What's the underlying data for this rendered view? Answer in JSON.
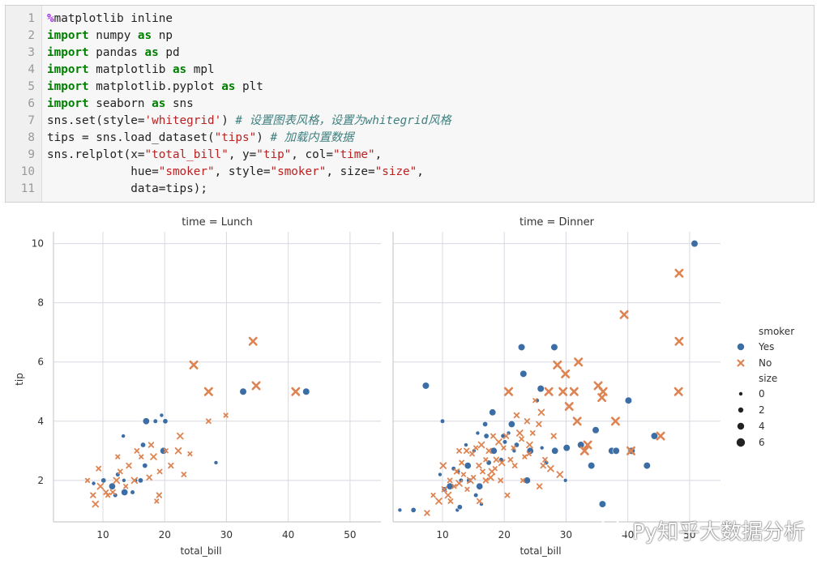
{
  "code_cell": {
    "lines": [
      {
        "n": "1",
        "parts": [
          {
            "t": "%",
            "c": "mg"
          },
          {
            "t": "matplotlib inline",
            "c": "txt"
          }
        ]
      },
      {
        "n": "2",
        "parts": [
          {
            "t": "import",
            "c": "kw"
          },
          {
            "t": " numpy ",
            "c": "txt"
          },
          {
            "t": "as",
            "c": "kw"
          },
          {
            "t": " np",
            "c": "txt"
          }
        ]
      },
      {
        "n": "3",
        "parts": [
          {
            "t": "import",
            "c": "kw"
          },
          {
            "t": " pandas ",
            "c": "txt"
          },
          {
            "t": "as",
            "c": "kw"
          },
          {
            "t": " pd",
            "c": "txt"
          }
        ]
      },
      {
        "n": "4",
        "parts": [
          {
            "t": "import",
            "c": "kw"
          },
          {
            "t": " matplotlib ",
            "c": "txt"
          },
          {
            "t": "as",
            "c": "kw"
          },
          {
            "t": " mpl",
            "c": "txt"
          }
        ]
      },
      {
        "n": "5",
        "parts": [
          {
            "t": "import",
            "c": "kw"
          },
          {
            "t": " matplotlib.pyplot ",
            "c": "txt"
          },
          {
            "t": "as",
            "c": "kw"
          },
          {
            "t": " plt",
            "c": "txt"
          }
        ]
      },
      {
        "n": "6",
        "parts": [
          {
            "t": "import",
            "c": "kw"
          },
          {
            "t": " seaborn ",
            "c": "txt"
          },
          {
            "t": "as",
            "c": "kw"
          },
          {
            "t": " sns",
            "c": "txt"
          }
        ]
      },
      {
        "n": "7",
        "parts": [
          {
            "t": "sns.set(style=",
            "c": "txt"
          },
          {
            "t": "'whitegrid'",
            "c": "str"
          },
          {
            "t": ") ",
            "c": "txt"
          },
          {
            "t": "# 设置图表风格，设置为whitegrid风格",
            "c": "com"
          }
        ]
      },
      {
        "n": "8",
        "parts": [
          {
            "t": "tips = sns.load_dataset(",
            "c": "txt"
          },
          {
            "t": "\"tips\"",
            "c": "str"
          },
          {
            "t": ") ",
            "c": "txt"
          },
          {
            "t": "# 加载内置数据",
            "c": "com"
          }
        ]
      },
      {
        "n": "9",
        "parts": [
          {
            "t": "sns.relplot(x=",
            "c": "txt"
          },
          {
            "t": "\"total_bill\"",
            "c": "str"
          },
          {
            "t": ", y=",
            "c": "txt"
          },
          {
            "t": "\"tip\"",
            "c": "str"
          },
          {
            "t": ", col=",
            "c": "txt"
          },
          {
            "t": "\"time\"",
            "c": "str"
          },
          {
            "t": ",",
            "c": "txt"
          }
        ]
      },
      {
        "n": "10",
        "parts": [
          {
            "t": "            hue=",
            "c": "txt"
          },
          {
            "t": "\"smoker\"",
            "c": "str"
          },
          {
            "t": ", style=",
            "c": "txt"
          },
          {
            "t": "\"smoker\"",
            "c": "str"
          },
          {
            "t": ", size=",
            "c": "txt"
          },
          {
            "t": "\"size\"",
            "c": "str"
          },
          {
            "t": ",",
            "c": "txt"
          }
        ]
      },
      {
        "n": "11",
        "parts": [
          {
            "t": "            data=tips);",
            "c": "txt"
          }
        ]
      }
    ]
  },
  "colors": {
    "yes": "#3c6ea5",
    "no": "#dd8452",
    "grid": "#d8d8e2",
    "axis": "#cccccc",
    "text": "#333333"
  },
  "chart_data": {
    "type": "scatter",
    "ylabel": "tip",
    "xticks": [
      10,
      20,
      30,
      40,
      50
    ],
    "yticks": [
      2,
      4,
      6,
      8,
      10
    ],
    "xlim": [
      2,
      55
    ],
    "ylim": [
      0.6,
      10.4
    ],
    "panels": [
      {
        "title": "time = Lunch",
        "xlabel": "total_bill",
        "yes": [
          [
            13.3,
            3.5
          ],
          [
            16.5,
            3.2
          ],
          [
            17,
            4.0
          ],
          [
            18.5,
            4.0
          ],
          [
            19.5,
            4.2
          ],
          [
            20.1,
            4.0
          ],
          [
            19.8,
            3.0
          ],
          [
            12.4,
            2.2
          ],
          [
            13.4,
            2.0
          ],
          [
            16.1,
            2.0
          ],
          [
            13.5,
            1.6
          ],
          [
            14.8,
            1.6
          ],
          [
            15.3,
            2.0
          ],
          [
            10.1,
            2.0
          ],
          [
            11.5,
            1.8
          ],
          [
            12,
            1.5
          ],
          [
            8.5,
            1.9
          ],
          [
            16.8,
            2.5
          ],
          [
            32.7,
            5.0
          ],
          [
            42.9,
            5.0
          ],
          [
            28.3,
            2.6
          ]
        ],
        "no": [
          [
            7.5,
            2.0
          ],
          [
            8.4,
            1.5
          ],
          [
            9.6,
            1.8
          ],
          [
            10.5,
            1.6
          ],
          [
            10.8,
            1.5
          ],
          [
            11.6,
            1.6
          ],
          [
            12.2,
            2.0
          ],
          [
            12.8,
            2.3
          ],
          [
            13.7,
            1.8
          ],
          [
            14.2,
            2.5
          ],
          [
            15.1,
            2.0
          ],
          [
            15.5,
            3.0
          ],
          [
            16.2,
            2.8
          ],
          [
            17.5,
            2.1
          ],
          [
            18.2,
            2.8
          ],
          [
            19.2,
            2.3
          ],
          [
            20.2,
            3.0
          ],
          [
            21,
            2.5
          ],
          [
            22.2,
            3.0
          ],
          [
            23.1,
            2.2
          ],
          [
            24.1,
            2.9
          ],
          [
            24.7,
            5.9
          ],
          [
            27.1,
            5.0
          ],
          [
            27.1,
            4.0
          ],
          [
            29.9,
            4.2
          ],
          [
            34.3,
            6.7
          ],
          [
            34.8,
            5.2
          ],
          [
            41.2,
            5.0
          ],
          [
            18.7,
            1.3
          ],
          [
            19.1,
            1.5
          ],
          [
            8.8,
            1.2
          ],
          [
            9.3,
            2.4
          ],
          [
            12.4,
            2.8
          ],
          [
            17.8,
            3.2
          ],
          [
            22.5,
            3.5
          ]
        ]
      },
      {
        "title": "time = Dinner",
        "xlabel": "total_bill",
        "yes": [
          [
            3.1,
            1.0
          ],
          [
            5.3,
            1.0
          ],
          [
            7.3,
            5.2
          ],
          [
            10.0,
            4.0
          ],
          [
            12.4,
            1.0
          ],
          [
            12.8,
            1.1
          ],
          [
            14.1,
            2.5
          ],
          [
            15.4,
            1.5
          ],
          [
            16.3,
            1.2
          ],
          [
            17.1,
            3.5
          ],
          [
            18.1,
            4.3
          ],
          [
            19.8,
            3.5
          ],
          [
            22.8,
            6.5
          ],
          [
            23.1,
            5.6
          ],
          [
            23.7,
            2.0
          ],
          [
            25.3,
            4.7
          ],
          [
            26.1,
            3.1
          ],
          [
            28.1,
            6.5
          ],
          [
            28.2,
            3.0
          ],
          [
            30.1,
            3.1
          ],
          [
            29.9,
            2.0
          ],
          [
            32.4,
            3.2
          ],
          [
            34.8,
            3.7
          ],
          [
            34.1,
            2.5
          ],
          [
            37.4,
            3.0
          ],
          [
            38.1,
            3.0
          ],
          [
            40.1,
            4.7
          ],
          [
            40.6,
            3.0
          ],
          [
            43.1,
            2.5
          ],
          [
            44.3,
            3.5
          ],
          [
            50.8,
            10.0
          ],
          [
            13.0,
            2.0
          ],
          [
            15.1,
            3.0
          ],
          [
            16.9,
            3.9
          ],
          [
            18.3,
            3.0
          ],
          [
            20.1,
            3.3
          ],
          [
            21.6,
            3.0
          ],
          [
            25.9,
            5.1
          ],
          [
            11.2,
            1.8
          ],
          [
            12.5,
            2.3
          ],
          [
            13.8,
            3.2
          ],
          [
            14.3,
            2.0
          ],
          [
            16.0,
            1.8
          ],
          [
            19.5,
            2.7
          ],
          [
            20.7,
            3.6
          ],
          [
            22.0,
            3.2
          ],
          [
            24.2,
            3.0
          ],
          [
            26.8,
            2.6
          ],
          [
            9.6,
            2.2
          ],
          [
            10.3,
            1.7
          ],
          [
            35.9,
            1.2
          ],
          [
            11.8,
            2.4
          ],
          [
            15.7,
            3.6
          ],
          [
            17.5,
            2.6
          ],
          [
            21.2,
            3.9
          ]
        ],
        "no": [
          [
            8.5,
            1.5
          ],
          [
            10.3,
            1.7
          ],
          [
            10.9,
            1.5
          ],
          [
            11.2,
            2.0
          ],
          [
            11.9,
            1.8
          ],
          [
            12.3,
            2.3
          ],
          [
            12.7,
            1.9
          ],
          [
            13.1,
            2.6
          ],
          [
            13.4,
            2.2
          ],
          [
            13.9,
            3.0
          ],
          [
            14.5,
            2.0
          ],
          [
            14.8,
            2.9
          ],
          [
            15.4,
            3.1
          ],
          [
            15.9,
            2.5
          ],
          [
            16.3,
            3.2
          ],
          [
            16.5,
            2.3
          ],
          [
            17.0,
            2.7
          ],
          [
            17.5,
            3.0
          ],
          [
            17.8,
            2.1
          ],
          [
            18.2,
            3.5
          ],
          [
            18.5,
            2.4
          ],
          [
            18.7,
            2.7
          ],
          [
            19.1,
            3.3
          ],
          [
            19.4,
            2.0
          ],
          [
            19.9,
            3.1
          ],
          [
            20.3,
            3.5
          ],
          [
            20.7,
            5.0
          ],
          [
            21.0,
            2.7
          ],
          [
            21.5,
            3.1
          ],
          [
            22.0,
            4.2
          ],
          [
            22.5,
            3.6
          ],
          [
            22.8,
            3.4
          ],
          [
            23.3,
            2.8
          ],
          [
            23.7,
            4.0
          ],
          [
            24.1,
            3.2
          ],
          [
            24.6,
            3.6
          ],
          [
            25.0,
            4.7
          ],
          [
            25.6,
            3.9
          ],
          [
            26.0,
            4.3
          ],
          [
            26.6,
            2.7
          ],
          [
            27.2,
            5.0
          ],
          [
            28.0,
            3.5
          ],
          [
            28.6,
            5.9
          ],
          [
            29.5,
            5.0
          ],
          [
            29.9,
            5.6
          ],
          [
            30.5,
            4.5
          ],
          [
            31.3,
            5.0
          ],
          [
            32.0,
            6.0
          ],
          [
            33.5,
            3.2
          ],
          [
            35.2,
            5.2
          ],
          [
            35.8,
            4.8
          ],
          [
            36.0,
            5.0
          ],
          [
            38.0,
            4.0
          ],
          [
            39.4,
            7.6
          ],
          [
            48.3,
            9.0
          ],
          [
            48.3,
            6.7
          ],
          [
            48.2,
            5.0
          ],
          [
            45.3,
            3.5
          ],
          [
            9.4,
            1.3
          ],
          [
            11.3,
            1.3
          ],
          [
            14.0,
            1.7
          ],
          [
            16.0,
            1.3
          ],
          [
            18.0,
            2.3
          ],
          [
            20.5,
            1.5
          ],
          [
            23.0,
            2.0
          ],
          [
            25.7,
            1.8
          ],
          [
            27.5,
            2.4
          ],
          [
            31.8,
            4.0
          ],
          [
            40.5,
            3.0
          ],
          [
            7.5,
            0.9
          ],
          [
            10.1,
            2.5
          ],
          [
            12.7,
            3.0
          ],
          [
            15.0,
            2.1
          ],
          [
            17.0,
            2.0
          ],
          [
            19.6,
            2.6
          ],
          [
            21.7,
            2.5
          ],
          [
            24.0,
            2.9
          ],
          [
            26.3,
            2.5
          ],
          [
            29.0,
            2.2
          ],
          [
            33.0,
            3.0
          ]
        ]
      }
    ],
    "legend": {
      "position": "right",
      "smoker_title": "smoker",
      "smoker_items": [
        "Yes",
        "No"
      ],
      "size_title": "size",
      "size_items": [
        "0",
        "2",
        "4",
        "6"
      ]
    }
  },
  "watermark": {
    "text": "Py知乎大数据分析"
  }
}
